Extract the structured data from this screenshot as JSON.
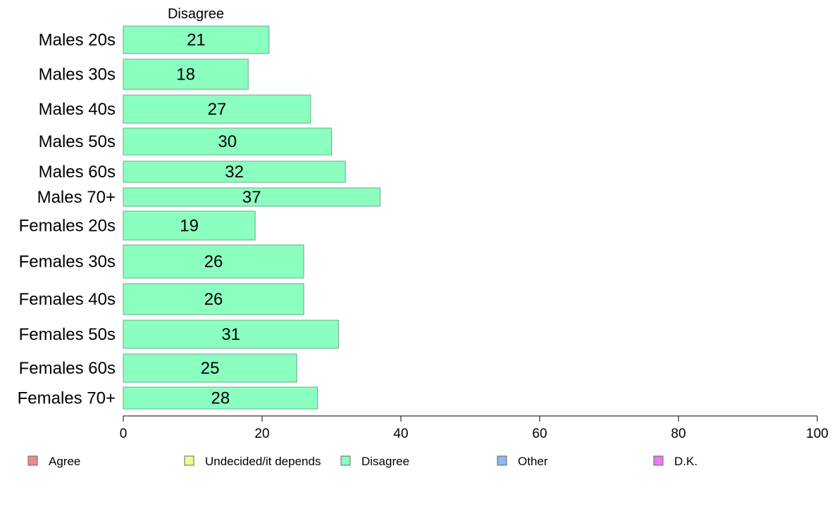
{
  "chart_data": {
    "type": "bar",
    "orientation": "horizontal",
    "title": "Disagree",
    "categories": [
      "Males 20s",
      "Males 30s",
      "Males 40s",
      "Males 50s",
      "Males 60s",
      "Males 70+",
      "Females 20s",
      "Females 30s",
      "Females 40s",
      "Females 50s",
      "Females 60s",
      "Females 70+"
    ],
    "values": [
      21,
      18,
      27,
      30,
      32,
      37,
      19,
      26,
      26,
      31,
      25,
      28
    ],
    "value_labels": [
      "21",
      "18",
      "27",
      "30",
      "32",
      "37",
      "19",
      "26",
      "26",
      "31",
      "25",
      "28"
    ],
    "xlim": [
      0,
      100
    ],
    "x_ticks": [
      "0",
      "20",
      "40",
      "60",
      "80",
      "100"
    ],
    "bar_color": "#8bffc0",
    "grid": false,
    "legend_position": "bottom",
    "legend": [
      {
        "label": "Agree",
        "color": "#f08a8a"
      },
      {
        "label": "Undecided/it depends",
        "color": "#eaff8a"
      },
      {
        "label": "Disagree",
        "color": "#8bffc0"
      },
      {
        "label": "Other",
        "color": "#8ab8f0"
      },
      {
        "label": "D.K.",
        "color": "#ea7af0"
      }
    ]
  }
}
